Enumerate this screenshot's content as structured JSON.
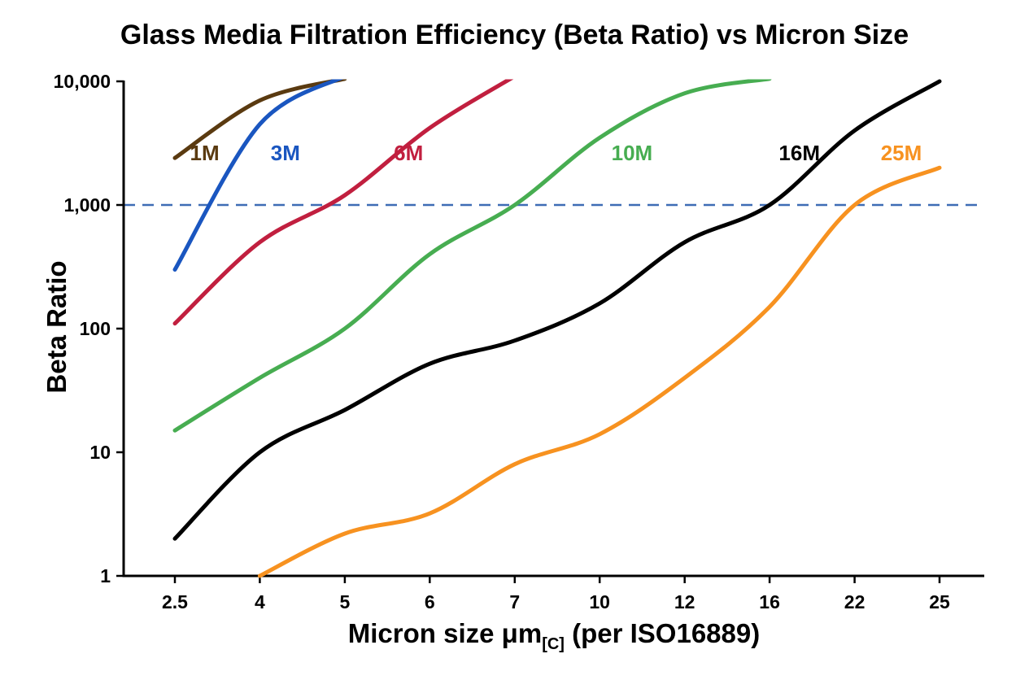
{
  "chart_data": {
    "type": "line",
    "title": "Glass Media Filtration Efficiency (Beta Ratio) vs Micron Size",
    "ylabel": "Beta Ratio",
    "xlabel_main": "Micron size μm",
    "xlabel_sub": "[C]",
    "xlabel_tail": " (per ISO16889)",
    "x_scale": "categorical",
    "y_scale": "log",
    "ylim": [
      1,
      10000
    ],
    "grid": false,
    "legend_position": "inline-labels",
    "y_ticks": [
      {
        "value": 1,
        "label": "1"
      },
      {
        "value": 10,
        "label": "10"
      },
      {
        "value": 100,
        "label": "100"
      },
      {
        "value": 1000,
        "label": "1,000"
      },
      {
        "value": 10000,
        "label": "10,000"
      }
    ],
    "categories": [
      "2.5",
      "4",
      "5",
      "6",
      "7",
      "10",
      "12",
      "16",
      "22",
      "25"
    ],
    "threshold": {
      "value": 1000,
      "color": "#3e6cb5",
      "style": "dashed"
    },
    "series": [
      {
        "name": "1M",
        "color": "#5a3a10",
        "values": [
          2400,
          7000,
          10500,
          null,
          null,
          null,
          null,
          null,
          null,
          null
        ],
        "label_pos": {
          "ci": 0.35,
          "v": 2300
        }
      },
      {
        "name": "3M",
        "color": "#1a56c0",
        "values": [
          300,
          4500,
          11000,
          null,
          null,
          null,
          null,
          null,
          null,
          null
        ],
        "label_pos": {
          "ci": 1.3,
          "v": 2300
        }
      },
      {
        "name": "6M",
        "color": "#c11f3f",
        "values": [
          110,
          500,
          1200,
          4200,
          11000,
          null,
          null,
          null,
          null,
          null
        ],
        "label_pos": {
          "ci": 2.75,
          "v": 2300
        }
      },
      {
        "name": "10M",
        "color": "#47ad51",
        "values": [
          15,
          40,
          100,
          400,
          1000,
          3500,
          8000,
          10500,
          null,
          null
        ],
        "label_pos": {
          "ci": 5.38,
          "v": 2300
        }
      },
      {
        "name": "16M",
        "color": "#000000",
        "values": [
          2,
          10,
          22,
          52,
          80,
          160,
          500,
          1000,
          4000,
          10000
        ],
        "label_pos": {
          "ci": 7.35,
          "v": 2300
        }
      },
      {
        "name": "25M",
        "color": "#f79220",
        "values": [
          null,
          1,
          2.2,
          3.2,
          8,
          14,
          40,
          150,
          1000,
          2000
        ],
        "label_pos": {
          "ci": 8.55,
          "v": 2300
        }
      }
    ]
  }
}
